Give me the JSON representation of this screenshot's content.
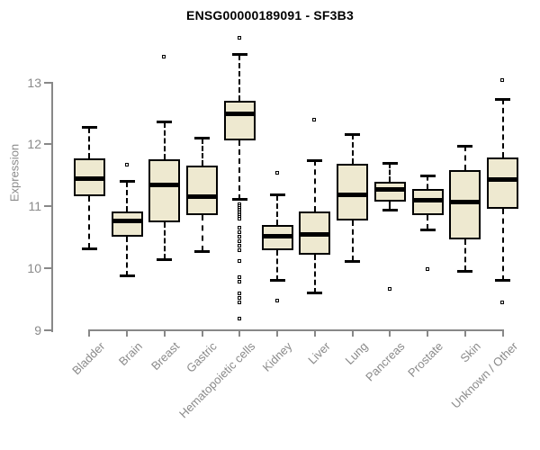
{
  "colors": {
    "box_fill": "#EEE9D0",
    "box_border": "#000000",
    "median": "#000000",
    "whisker": "#000000",
    "axis": "#888888",
    "tick_label": "#8A8A8A",
    "title": "#000000",
    "background": "#FFFFFF"
  },
  "chart_data": {
    "type": "boxplot",
    "title": "ENSG00000189091 - SF3B3",
    "xlabel": "",
    "ylabel": "Expression",
    "ylim": [
      9,
      13.8
    ],
    "yticks": [
      9,
      10,
      11,
      12,
      13
    ],
    "grid": false,
    "legend": "none",
    "categories": [
      "Bladder",
      "Brain",
      "Breast",
      "Gastric",
      "Hematopoietic cells",
      "Kidney",
      "Liver",
      "Lung",
      "Pancreas",
      "Prostate",
      "Skin",
      "Unknown / Other"
    ],
    "series": [
      {
        "category": "Bladder",
        "whisker_low": 10.31,
        "q1": 11.16,
        "median": 11.45,
        "q3": 11.77,
        "whisker_high": 12.27,
        "outliers": []
      },
      {
        "category": "Brain",
        "whisker_low": 9.87,
        "q1": 10.5,
        "median": 10.76,
        "q3": 10.92,
        "whisker_high": 11.4,
        "outliers": [
          11.66
        ]
      },
      {
        "category": "Breast",
        "whisker_low": 10.14,
        "q1": 10.74,
        "median": 11.35,
        "q3": 11.76,
        "whisker_high": 12.36,
        "outliers": [
          13.41
        ]
      },
      {
        "category": "Gastric",
        "whisker_low": 10.27,
        "q1": 10.86,
        "median": 11.15,
        "q3": 11.66,
        "whisker_high": 12.1,
        "outliers": []
      },
      {
        "category": "Hematopoietic cells",
        "whisker_low": 11.11,
        "q1": 12.06,
        "median": 12.5,
        "q3": 12.71,
        "whisker_high": 13.45,
        "outliers": [
          13.71,
          11.03,
          11.0,
          10.97,
          10.94,
          10.91,
          10.88,
          10.85,
          10.82,
          10.79,
          10.65,
          10.57,
          10.5,
          10.43,
          10.36,
          10.28,
          10.1,
          9.85,
          9.77,
          9.58,
          9.51,
          9.43,
          9.18
        ]
      },
      {
        "category": "Kidney",
        "whisker_low": 9.8,
        "q1": 10.29,
        "median": 10.52,
        "q3": 10.7,
        "whisker_high": 11.18,
        "outliers": [
          11.54,
          9.46
        ]
      },
      {
        "category": "Liver",
        "whisker_low": 9.59,
        "q1": 10.21,
        "median": 10.54,
        "q3": 10.91,
        "whisker_high": 11.74,
        "outliers": [
          12.39
        ]
      },
      {
        "category": "Lung",
        "whisker_low": 10.11,
        "q1": 10.77,
        "median": 11.18,
        "q3": 11.68,
        "whisker_high": 12.16,
        "outliers": []
      },
      {
        "category": "Pancreas",
        "whisker_low": 10.94,
        "q1": 11.08,
        "median": 11.27,
        "q3": 11.4,
        "whisker_high": 11.7,
        "outliers": [
          9.65
        ]
      },
      {
        "category": "Prostate",
        "whisker_low": 10.62,
        "q1": 10.85,
        "median": 11.09,
        "q3": 11.28,
        "whisker_high": 11.49,
        "outliers": [
          9.98
        ]
      },
      {
        "category": "Skin",
        "whisker_low": 9.95,
        "q1": 10.47,
        "median": 11.07,
        "q3": 11.58,
        "whisker_high": 11.97,
        "outliers": []
      },
      {
        "category": "Unknown / Other",
        "whisker_low": 9.8,
        "q1": 10.96,
        "median": 11.43,
        "q3": 11.79,
        "whisker_high": 12.73,
        "outliers": [
          13.03,
          9.43
        ]
      }
    ]
  }
}
